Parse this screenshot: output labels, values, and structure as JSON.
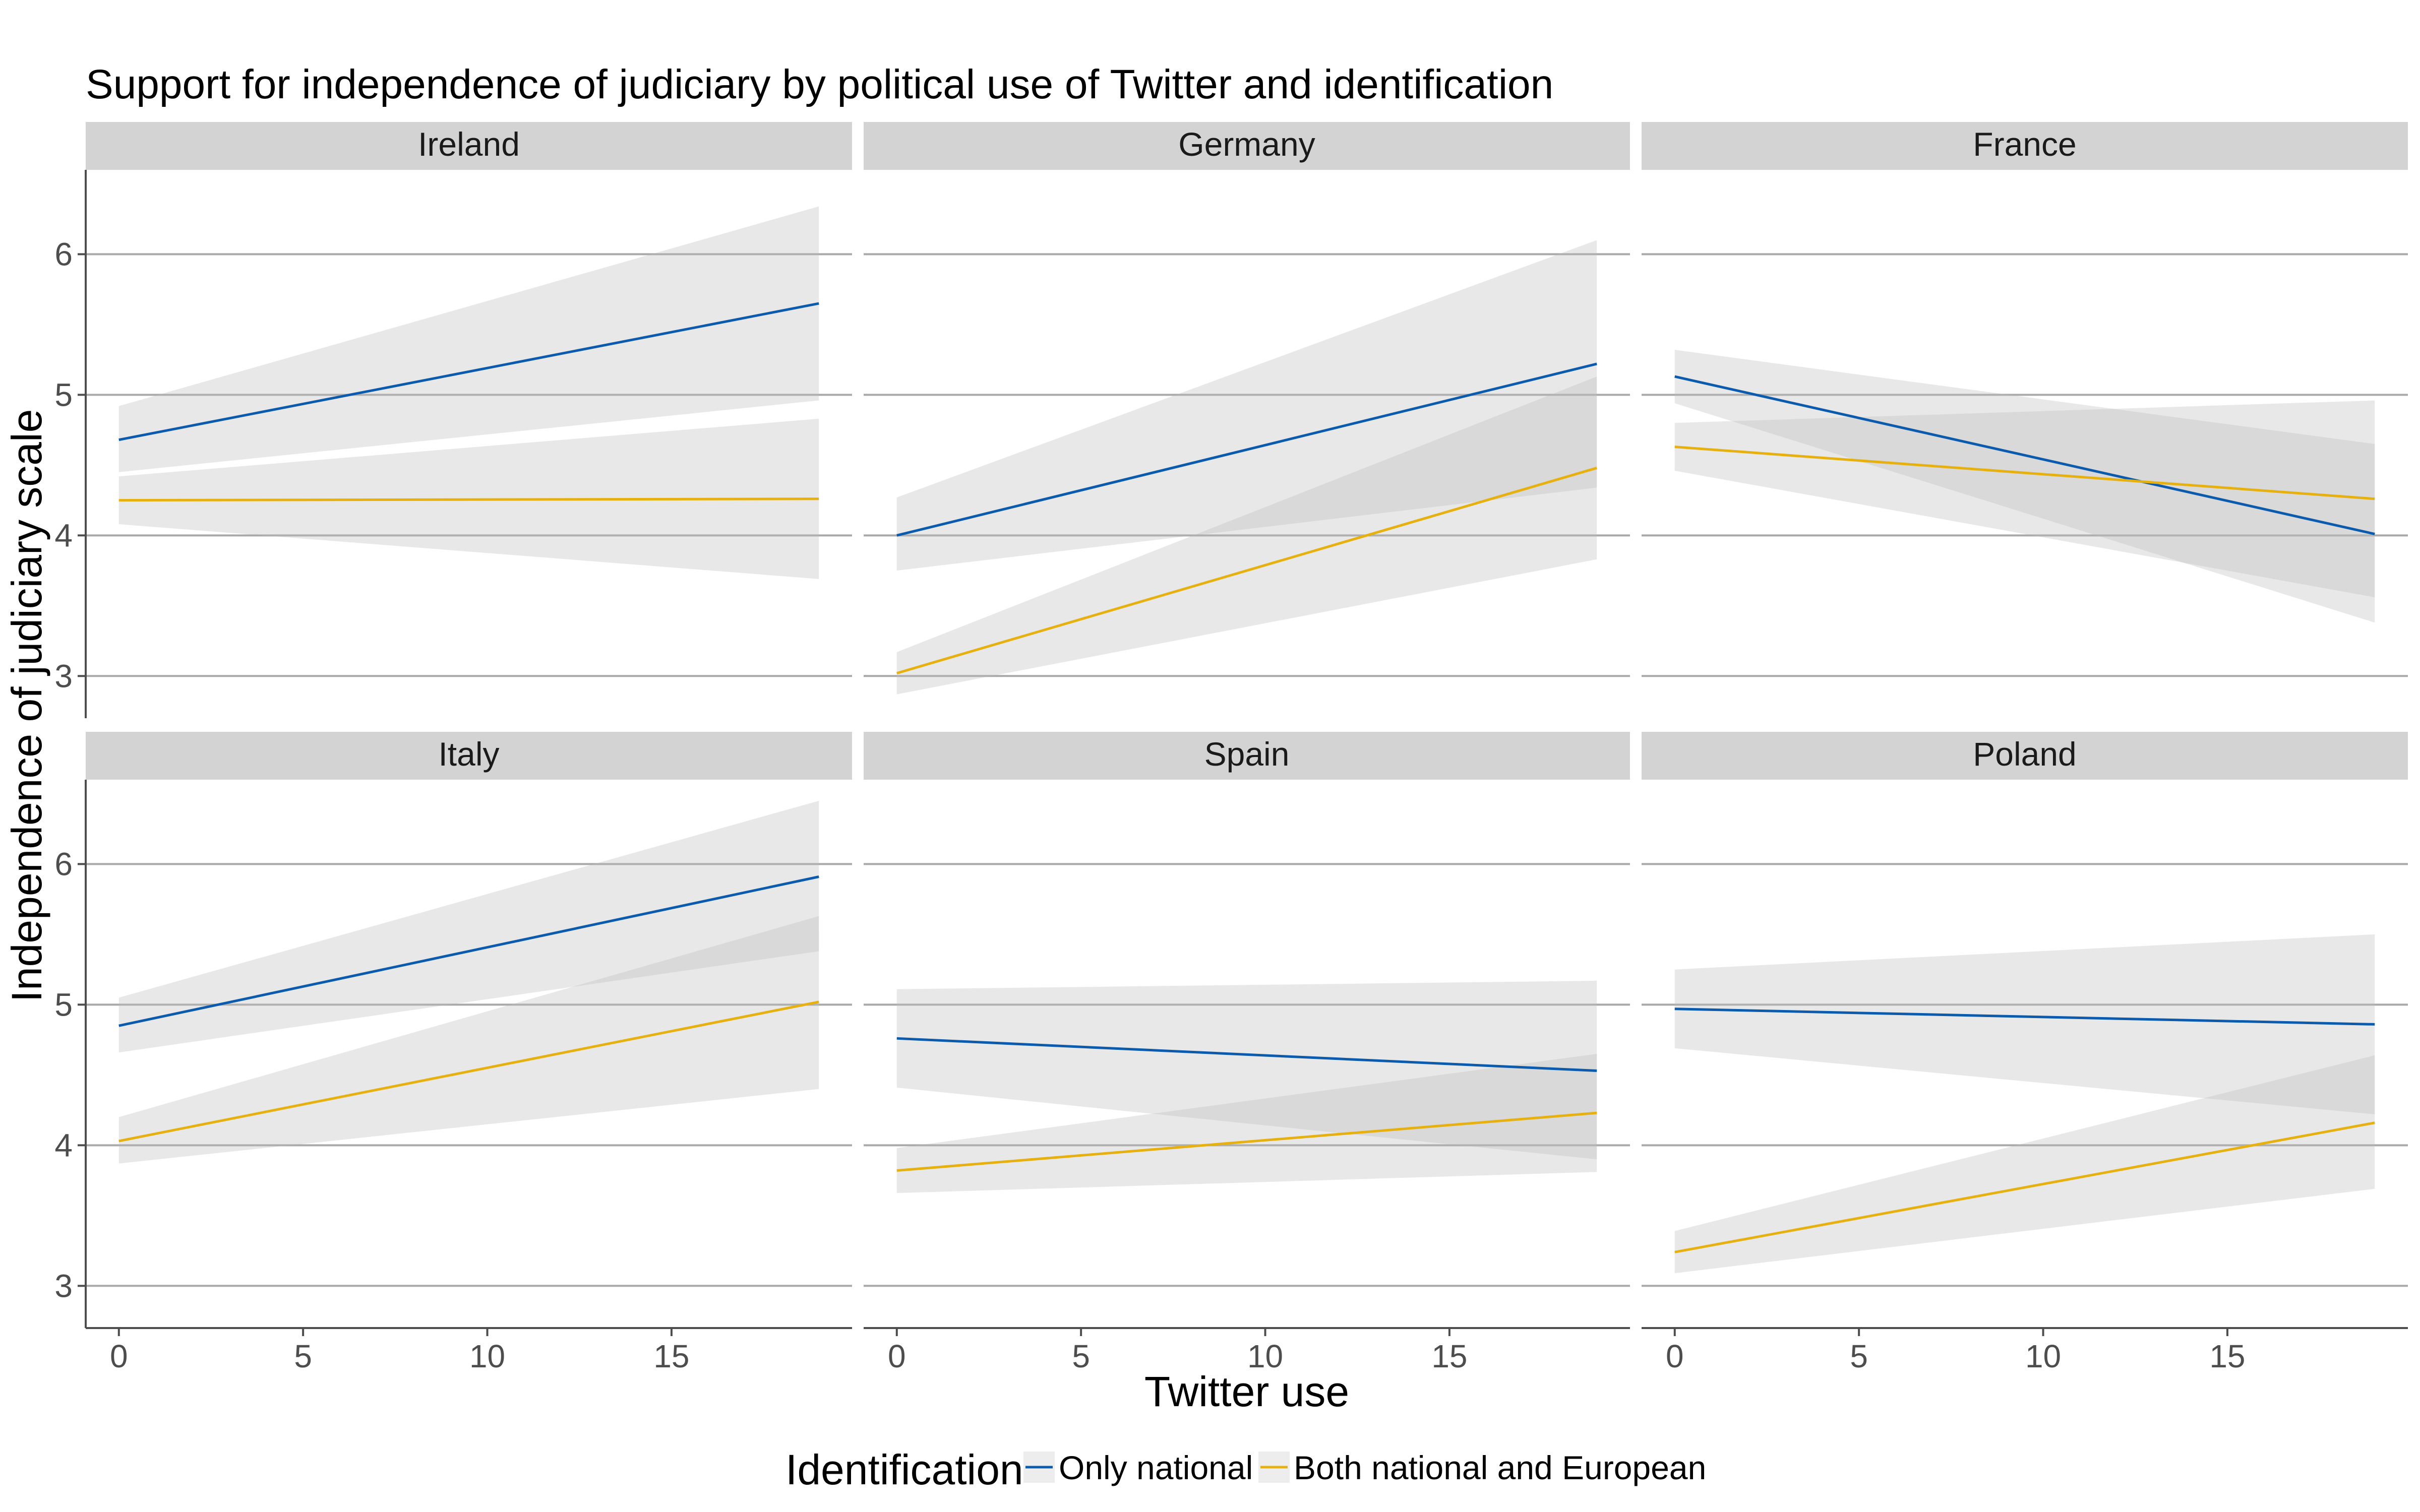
{
  "chart_data": {
    "type": "line",
    "title": "Support for independence of judiciary by political use of Twitter and identification",
    "xlabel": "Twitter use",
    "ylabel": "Independence of judiciary scale",
    "xlim": [
      -0.9,
      19.9
    ],
    "ylim": [
      2.7,
      6.6
    ],
    "xticks": [
      0,
      5,
      10,
      15
    ],
    "yticks": [
      3,
      4,
      5,
      6
    ],
    "grid": "horizontal-major",
    "legend": {
      "title": "Identification",
      "position": "bottom",
      "entries": [
        "Only national",
        "Both national and European"
      ]
    },
    "colors": {
      "Only national": "#0a5aad",
      "Both national and European": "#e6b10f",
      "ribbon": "#bdbdbd",
      "strip": "#d3d3d3",
      "grid": "#a9a9a9"
    },
    "facets": [
      {
        "name": "Ireland",
        "series": [
          {
            "name": "Only national",
            "x": [
              0,
              19
            ],
            "y": [
              4.68,
              5.65
            ],
            "lower": [
              4.45,
              4.96
            ],
            "upper": [
              4.92,
              6.34
            ]
          },
          {
            "name": "Both national and European",
            "x": [
              0,
              19
            ],
            "y": [
              4.25,
              4.26
            ],
            "lower": [
              4.08,
              3.69
            ],
            "upper": [
              4.42,
              4.83
            ]
          }
        ]
      },
      {
        "name": "Germany",
        "series": [
          {
            "name": "Only national",
            "x": [
              0,
              19
            ],
            "y": [
              4.0,
              5.22
            ],
            "lower": [
              3.75,
              4.34
            ],
            "upper": [
              4.27,
              6.1
            ]
          },
          {
            "name": "Both national and European",
            "x": [
              0,
              19
            ],
            "y": [
              3.02,
              4.48
            ],
            "lower": [
              2.87,
              3.83
            ],
            "upper": [
              3.17,
              5.13
            ]
          }
        ]
      },
      {
        "name": "France",
        "series": [
          {
            "name": "Only national",
            "x": [
              0,
              19
            ],
            "y": [
              5.13,
              4.01
            ],
            "lower": [
              4.94,
              3.38
            ],
            "upper": [
              5.32,
              4.65
            ]
          },
          {
            "name": "Both national and European",
            "x": [
              0,
              19
            ],
            "y": [
              4.63,
              4.26
            ],
            "lower": [
              4.46,
              3.56
            ],
            "upper": [
              4.8,
              4.96
            ]
          }
        ]
      },
      {
        "name": "Italy",
        "series": [
          {
            "name": "Only national",
            "x": [
              0,
              19
            ],
            "y": [
              4.85,
              5.91
            ],
            "lower": [
              4.66,
              5.38
            ],
            "upper": [
              5.05,
              6.45
            ]
          },
          {
            "name": "Both national and European",
            "x": [
              0,
              19
            ],
            "y": [
              4.03,
              5.02
            ],
            "lower": [
              3.87,
              4.4
            ],
            "upper": [
              4.2,
              5.63
            ]
          }
        ]
      },
      {
        "name": "Spain",
        "series": [
          {
            "name": "Only national",
            "x": [
              0,
              19
            ],
            "y": [
              4.76,
              4.53
            ],
            "lower": [
              4.41,
              3.9
            ],
            "upper": [
              5.11,
              5.17
            ]
          },
          {
            "name": "Both national and European",
            "x": [
              0,
              19
            ],
            "y": [
              3.82,
              4.23
            ],
            "lower": [
              3.66,
              3.81
            ],
            "upper": [
              3.98,
              4.65
            ]
          }
        ]
      },
      {
        "name": "Poland",
        "series": [
          {
            "name": "Only national",
            "x": [
              0,
              19
            ],
            "y": [
              4.97,
              4.86
            ],
            "lower": [
              4.69,
              4.22
            ],
            "upper": [
              5.25,
              5.5
            ]
          },
          {
            "name": "Both national and European",
            "x": [
              0,
              19
            ],
            "y": [
              3.24,
              4.16
            ],
            "lower": [
              3.09,
              3.69
            ],
            "upper": [
              3.39,
              4.64
            ]
          }
        ]
      }
    ]
  }
}
